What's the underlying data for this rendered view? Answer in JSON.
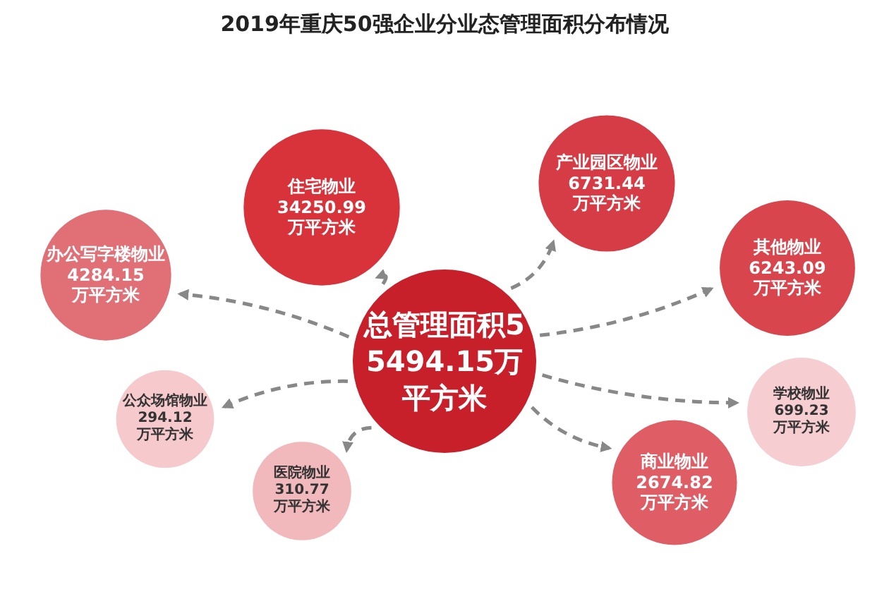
{
  "chart_data": {
    "type": "other",
    "title": "2019年重庆50强企业分业态管理面积分布情况",
    "categories": [
      "住宅物业",
      "产业园区物业",
      "办公写字楼物业",
      "其他物业",
      "公众场馆物业",
      "学校物业",
      "医院物业",
      "商业物业"
    ],
    "values": [
      34250.99,
      6731.44,
      4284.15,
      6243.09,
      294.12,
      699.23,
      310.77,
      2674.82
    ],
    "value_labels": [
      "34250.99\n万平方米",
      "6731.44\n万平方米",
      "4284.15\n万平方米",
      "6243.09\n万平方米",
      "294.12\n万平方米",
      "699.23\n万平方米",
      "310.77\n万平方米",
      "2674.82\n万平方米"
    ],
    "colors": [
      "#d8333b",
      "#d63c45",
      "#e06f76",
      "#d8454d",
      "#f6c9cc",
      "#f6cdd0",
      "#f2b9bd",
      "#df5e66"
    ],
    "annotations": [
      "总管理面积55494.15万平方米"
    ]
  }
}
